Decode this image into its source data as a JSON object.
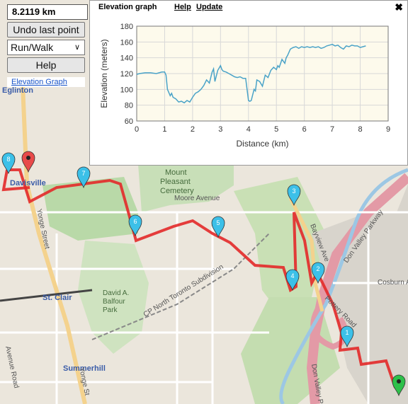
{
  "distance": "8.2119 km",
  "controls": {
    "undo_label": "Undo last point",
    "mode_value": "Run/Walk",
    "help_label": "Help",
    "elevation_link": "Elevation Graph"
  },
  "graph_window": {
    "title": "Elevation graph",
    "help": "Help",
    "update": "Update",
    "close": "✖"
  },
  "chart_data": {
    "type": "line",
    "xlabel": "Distance (km)",
    "ylabel": "Elevation (meters)",
    "xlim": [
      0,
      9
    ],
    "ylim": [
      60,
      180
    ],
    "xticks": [
      "0",
      "1",
      "2",
      "3",
      "4",
      "5",
      "6",
      "7",
      "8",
      "9"
    ],
    "yticks": [
      "60",
      "80",
      "100",
      "120",
      "140",
      "160",
      "180"
    ],
    "grid": true,
    "line_color": "#4aa3c8",
    "x": [
      0,
      0.1,
      0.3,
      0.5,
      0.7,
      0.9,
      1.0,
      1.05,
      1.1,
      1.2,
      1.25,
      1.3,
      1.4,
      1.5,
      1.6,
      1.7,
      1.8,
      1.9,
      2.0,
      2.1,
      2.2,
      2.3,
      2.4,
      2.5,
      2.6,
      2.7,
      2.75,
      2.8,
      2.9,
      3.0,
      3.05,
      3.1,
      3.2,
      3.3,
      3.4,
      3.5,
      3.6,
      3.7,
      3.8,
      3.9,
      4.0,
      4.05,
      4.1,
      4.2,
      4.25,
      4.3,
      4.4,
      4.5,
      4.6,
      4.7,
      4.8,
      4.9,
      5.0,
      5.05,
      5.1,
      5.2,
      5.3,
      5.35,
      5.4,
      5.5,
      5.6,
      5.7,
      5.8,
      5.9,
      6.0,
      6.1,
      6.2,
      6.3,
      6.4,
      6.5,
      6.6,
      6.7,
      6.8,
      6.9,
      7.0,
      7.1,
      7.2,
      7.3,
      7.4,
      7.5,
      7.6,
      7.7,
      7.8,
      7.9,
      8.0,
      8.1,
      8.2
    ],
    "y": [
      119,
      120,
      121,
      121,
      120,
      122,
      122,
      118,
      100,
      92,
      95,
      90,
      88,
      84,
      85,
      83,
      86,
      84,
      90,
      95,
      97,
      100,
      105,
      112,
      108,
      122,
      126,
      110,
      124,
      130,
      125,
      123,
      122,
      120,
      118,
      116,
      115,
      116,
      114,
      114,
      86,
      85,
      86,
      100,
      98,
      112,
      110,
      104,
      118,
      115,
      124,
      128,
      125,
      130,
      128,
      138,
      133,
      140,
      143,
      151,
      153,
      154,
      152,
      154,
      153,
      154,
      153,
      154,
      153,
      154,
      152,
      153,
      155,
      156,
      157,
      155,
      156,
      153,
      151,
      155,
      154,
      156,
      155,
      155,
      153,
      154,
      155
    ]
  },
  "map": {
    "markers": [
      "1",
      "2",
      "3",
      "4",
      "5",
      "6",
      "7",
      "8"
    ],
    "labels": {
      "eglinton": "Eglinton",
      "davisville": "Davisville",
      "cemetery": "Mount Pleasant Cemetery",
      "cemetery1": "Mount",
      "cemetery2": "Pleasant",
      "cemetery3": "Cemetery",
      "moore": "Moore Avenue",
      "stclair": "St. Clair",
      "balfour1": "David A.",
      "balfour2": "Balfour",
      "balfour3": "Park",
      "summerhill": "Summerhill",
      "subdivision": "CP North Toronto Subdivision",
      "dvp1": "Don Valley Parkway",
      "dvp2": "Don Valley Par",
      "cosburn": "Cosburn Ave",
      "pottery": "Pottery Road",
      "bayview": "Bayview Ave",
      "yonge1": "Yonge Street",
      "yonge2": "Yonge St",
      "avenue": "Avenue Road"
    }
  }
}
